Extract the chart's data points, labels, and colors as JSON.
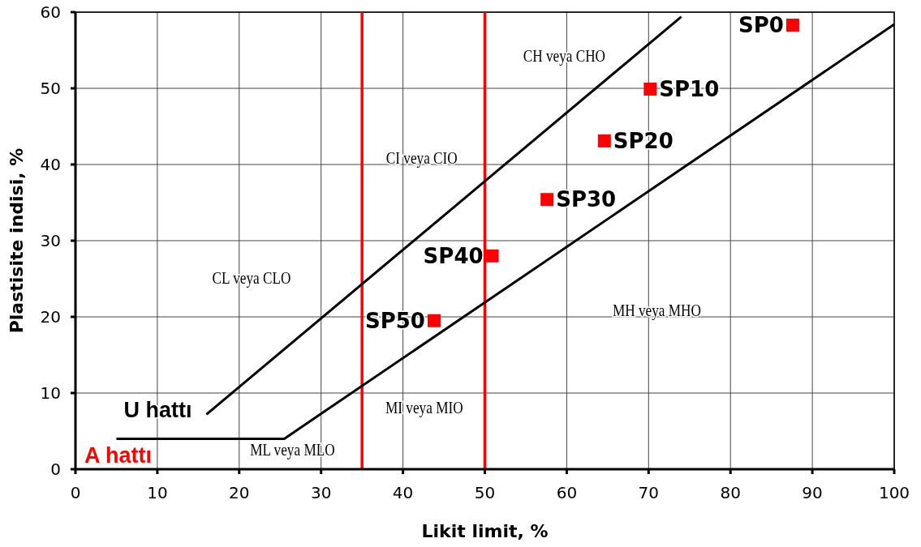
{
  "chart_data": {
    "type": "scatter",
    "xlabel": "Likit limit, %",
    "ylabel": "Plastisite indisi, %",
    "xlim": [
      0,
      100
    ],
    "xticks": [
      0,
      10,
      20,
      30,
      40,
      50,
      60,
      70,
      80,
      90,
      100
    ],
    "ylim": [
      0,
      60
    ],
    "yticks": [
      0,
      10,
      20,
      30,
      40,
      50,
      60
    ],
    "grid": true,
    "marker": "square",
    "series": [
      {
        "color": "#ff0000",
        "x": [
          87.6,
          70.2,
          64.6,
          57.6,
          50.9,
          43.8
        ],
        "values": [
          58.3,
          49.9,
          43.1,
          35.4,
          28.0,
          19.5
        ]
      },
      {
        "name": "U hattı",
        "type": "line",
        "marker": "none",
        "color": "#000000",
        "x": [
          16,
          74
        ],
        "values": [
          7.2,
          59.4
        ]
      },
      {
        "name": "A hattı",
        "type": "line",
        "marker": "none",
        "color": "#000000",
        "x": [
          5,
          25.5,
          100
        ],
        "values": [
          4,
          4,
          58.4
        ]
      }
    ],
    "ref_lines": [
      {
        "axis": "x",
        "value": 35,
        "color": "#ff0000"
      },
      {
        "axis": "x",
        "value": 50,
        "color": "#ff0000"
      }
    ],
    "annotations": [
      "CH veya CHO",
      "CI veya CIO",
      "CL veya CLO",
      "MH veya MHO",
      "MI veya MIO",
      "ML veya MLO",
      {
        "text": "SP0",
        "x": 87.6,
        "y": 58.3
      },
      {
        "text": "SP10",
        "x": 70.2,
        "y": 49.9
      },
      {
        "text": "SP20",
        "x": 64.6,
        "y": 43.1
      },
      {
        "text": "SP30",
        "x": 57.6,
        "y": 35.4
      },
      {
        "text": "SP40",
        "x": 50.9,
        "y": 28.0
      },
      {
        "text": "SP50",
        "x": 43.8,
        "y": 19.5
      }
    ]
  }
}
